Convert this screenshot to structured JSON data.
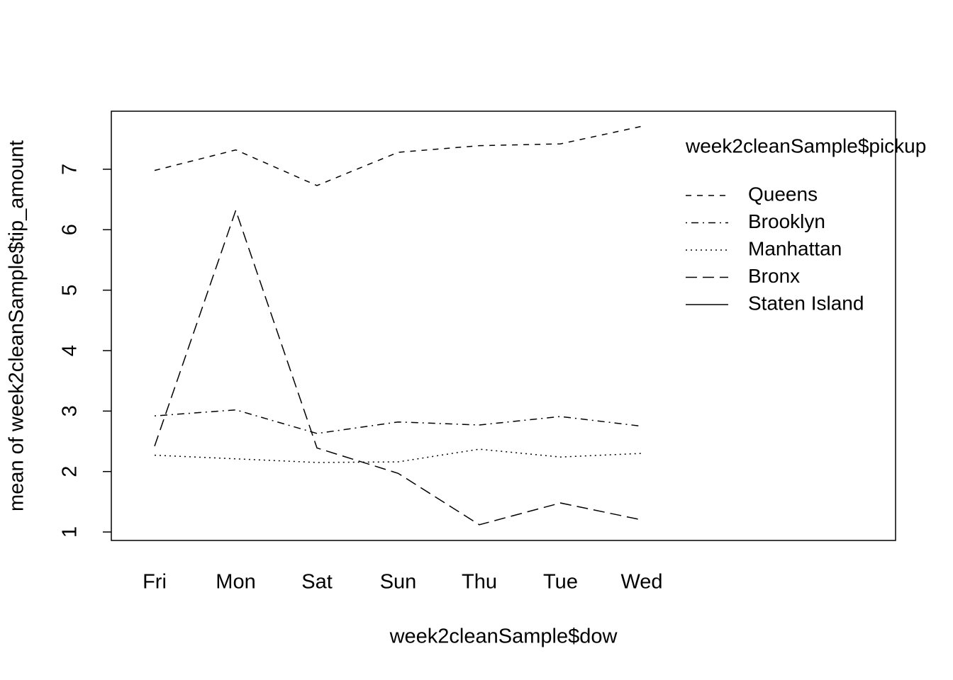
{
  "chart_data": {
    "type": "line",
    "x_label": "week2cleanSample$dow",
    "y_label": "mean of  week2cleanSample$tip_amount",
    "legend_title": "week2cleanSample$pickup",
    "categories": [
      "Fri",
      "Mon",
      "Sat",
      "Sun",
      "Thu",
      "Tue",
      "Wed"
    ],
    "series": [
      {
        "name": "Queens",
        "color": "#000000",
        "dash": "dashed",
        "values": [
          6.98,
          7.32,
          6.73,
          7.28,
          7.39,
          7.42,
          7.71
        ]
      },
      {
        "name": "Brooklyn",
        "color": "#000000",
        "dash": "dotdash",
        "values": [
          2.92,
          3.02,
          2.63,
          2.82,
          2.77,
          2.91,
          2.75
        ]
      },
      {
        "name": "Manhattan",
        "color": "#000000",
        "dash": "dotted",
        "values": [
          2.27,
          2.21,
          2.15,
          2.16,
          2.37,
          2.24,
          2.3
        ]
      },
      {
        "name": "Bronx",
        "color": "#000000",
        "dash": "longdash",
        "values": [
          2.42,
          6.32,
          2.39,
          1.97,
          1.12,
          1.48,
          1.2
        ]
      },
      {
        "name": "Staten Island",
        "color": "#000000",
        "dash": "solid",
        "values": [
          null,
          null,
          null,
          null,
          null,
          null,
          null
        ]
      }
    ],
    "ylim": [
      0.86,
      7.96
    ],
    "yticks": [
      1,
      2,
      3,
      4,
      5,
      6,
      7
    ],
    "grid": false,
    "legend": "top-right"
  }
}
